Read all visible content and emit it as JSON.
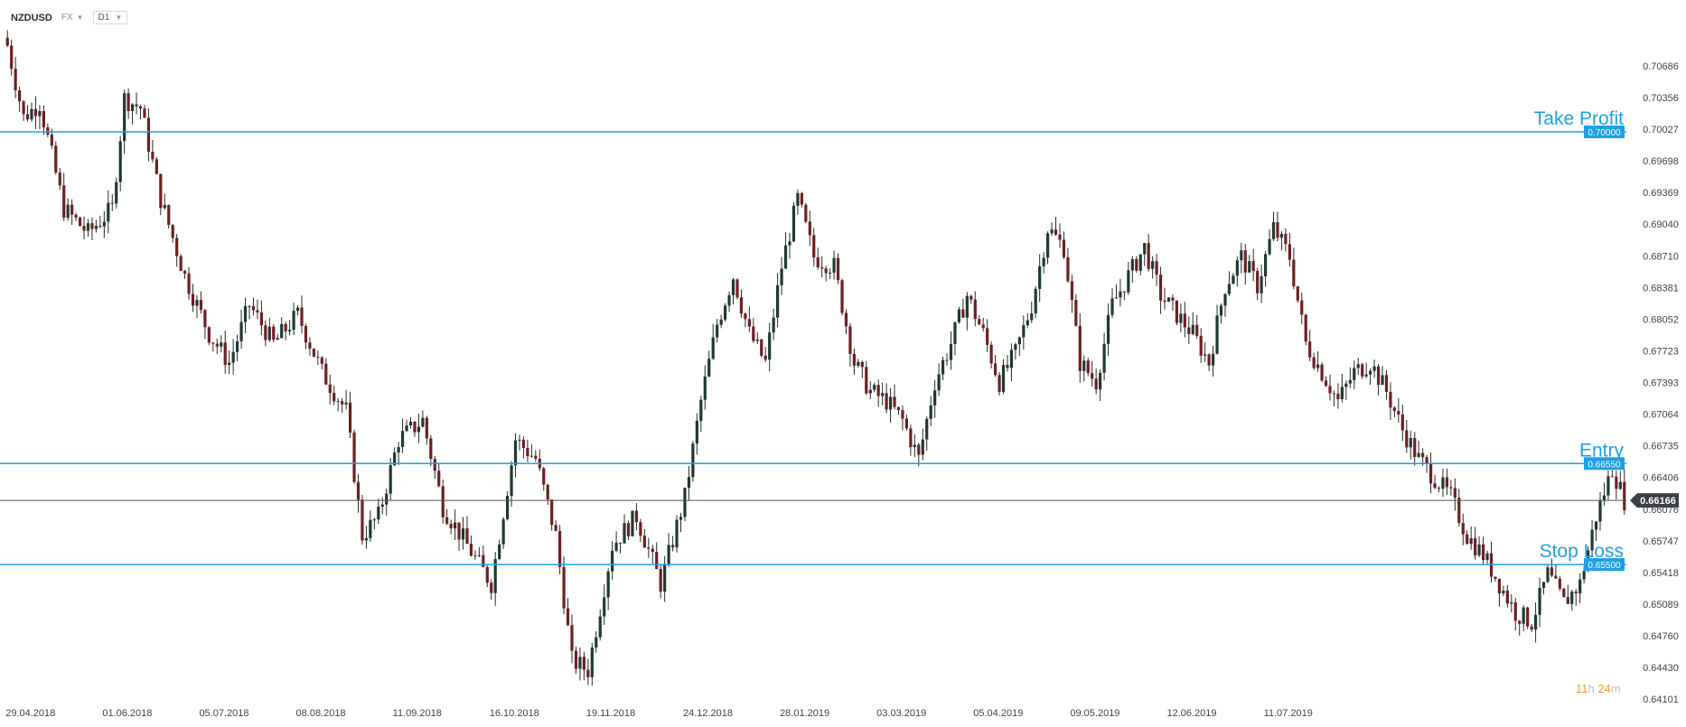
{
  "toolbar": {
    "symbol": "NZDUSD",
    "market": "FX",
    "timeframe": "D1",
    "chevron_icon": "chevron-down-icon"
  },
  "countdown": {
    "hours": "11",
    "h_unit": "h",
    "minutes": "24",
    "m_unit": "m"
  },
  "colors": {
    "up_candle": "#1f3a30",
    "down_candle": "#6e1f24",
    "level_line": "#1ea0e6",
    "last_price_line": "#555555",
    "last_price_badge": "#3c4046",
    "axis_text": "#444444"
  },
  "levels": [
    {
      "name": "take-profit",
      "label": "Take Profit",
      "price": 0.7,
      "badge": "0.70000"
    },
    {
      "name": "entry",
      "label": "Entry",
      "price": 0.6655,
      "badge": "0.66550"
    },
    {
      "name": "stop-loss",
      "label": "Stop Loss",
      "price": 0.655,
      "badge": "0.65500"
    }
  ],
  "last_price": {
    "price": 0.66166,
    "badge": "0.66166"
  },
  "chart_data": {
    "type": "candlestick",
    "ylim": [
      0.64101,
      0.71015
    ],
    "y_ticks": [
      "0.70686",
      "0.70356",
      "0.70027",
      "0.69698",
      "0.69369",
      "0.69040",
      "0.68710",
      "0.68381",
      "0.68052",
      "0.67723",
      "0.67393",
      "0.67064",
      "0.66735",
      "0.66406",
      "0.66076",
      "0.65747",
      "0.65418",
      "0.65089",
      "0.64760",
      "0.64430",
      "0.64101"
    ],
    "x_ticks": [
      "29.04.2018",
      "01.06.2018",
      "05.07.2018",
      "08.08.2018",
      "11.09.2018",
      "16.10.2018",
      "19.11.2018",
      "24.12.2018",
      "28.01.2019",
      "03.03.2019",
      "05.04.2019",
      "09.05.2019",
      "12.06.2019",
      "11.07.2019"
    ],
    "x_tick_index_step": 24,
    "keypoints": [
      [
        0,
        0.709
      ],
      [
        4,
        0.7015
      ],
      [
        8,
        0.703
      ],
      [
        14,
        0.692
      ],
      [
        20,
        0.6895
      ],
      [
        26,
        0.692
      ],
      [
        29,
        0.7035
      ],
      [
        33,
        0.7025
      ],
      [
        38,
        0.693
      ],
      [
        44,
        0.685
      ],
      [
        50,
        0.679
      ],
      [
        55,
        0.676
      ],
      [
        60,
        0.682
      ],
      [
        66,
        0.678
      ],
      [
        72,
        0.681
      ],
      [
        78,
        0.675
      ],
      [
        84,
        0.671
      ],
      [
        88,
        0.658
      ],
      [
        92,
        0.66
      ],
      [
        97,
        0.668
      ],
      [
        103,
        0.67
      ],
      [
        108,
        0.661
      ],
      [
        114,
        0.657
      ],
      [
        120,
        0.653
      ],
      [
        126,
        0.668
      ],
      [
        131,
        0.666
      ],
      [
        136,
        0.658
      ],
      [
        140,
        0.645
      ],
      [
        144,
        0.644
      ],
      [
        150,
        0.657
      ],
      [
        156,
        0.66
      ],
      [
        162,
        0.653
      ],
      [
        168,
        0.662
      ],
      [
        172,
        0.672
      ],
      [
        176,
        0.68
      ],
      [
        180,
        0.685
      ],
      [
        184,
        0.679
      ],
      [
        188,
        0.676
      ],
      [
        192,
        0.686
      ],
      [
        196,
        0.693
      ],
      [
        200,
        0.687
      ],
      [
        205,
        0.686
      ],
      [
        210,
        0.676
      ],
      [
        214,
        0.673
      ],
      [
        218,
        0.672
      ],
      [
        222,
        0.67
      ],
      [
        226,
        0.666
      ],
      [
        230,
        0.674
      ],
      [
        234,
        0.678
      ],
      [
        238,
        0.683
      ],
      [
        242,
        0.679
      ],
      [
        246,
        0.674
      ],
      [
        250,
        0.677
      ],
      [
        254,
        0.682
      ],
      [
        258,
        0.69
      ],
      [
        262,
        0.688
      ],
      [
        266,
        0.676
      ],
      [
        270,
        0.674
      ],
      [
        274,
        0.682
      ],
      [
        278,
        0.685
      ],
      [
        282,
        0.688
      ],
      [
        286,
        0.683
      ],
      [
        290,
        0.681
      ],
      [
        294,
        0.679
      ],
      [
        298,
        0.676
      ],
      [
        302,
        0.684
      ],
      [
        306,
        0.687
      ],
      [
        310,
        0.684
      ],
      [
        314,
        0.69
      ],
      [
        318,
        0.687
      ],
      [
        322,
        0.678
      ],
      [
        326,
        0.675
      ],
      [
        330,
        0.672
      ],
      [
        334,
        0.675
      ],
      [
        338,
        0.676
      ],
      [
        342,
        0.673
      ],
      [
        346,
        0.669
      ],
      [
        350,
        0.666
      ],
      [
        354,
        0.664
      ],
      [
        358,
        0.662
      ],
      [
        362,
        0.658
      ],
      [
        366,
        0.656
      ],
      [
        370,
        0.653
      ],
      [
        374,
        0.65
      ],
      [
        378,
        0.649
      ],
      [
        382,
        0.654
      ],
      [
        386,
        0.651
      ],
      [
        390,
        0.653
      ],
      [
        394,
        0.66
      ],
      [
        398,
        0.665
      ],
      [
        401,
        0.6617
      ]
    ]
  }
}
